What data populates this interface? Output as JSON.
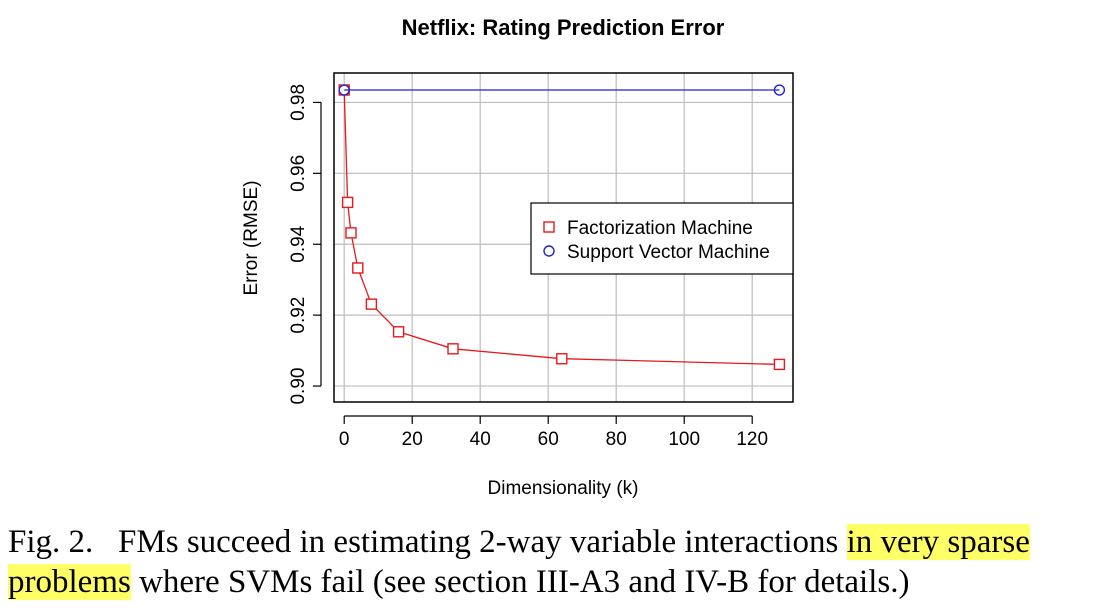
{
  "chart_data": {
    "type": "line",
    "title": "Netflix: Rating Prediction Error",
    "xlabel": "Dimensionality (k)",
    "ylabel": "Error (RMSE)",
    "xlim": [
      -3,
      132
    ],
    "ylim": [
      0.8955,
      0.9883
    ],
    "x_ticks": [
      0,
      20,
      40,
      60,
      80,
      100,
      120
    ],
    "y_ticks": [
      0.9,
      0.92,
      0.94,
      0.96,
      0.98
    ],
    "grid": true,
    "legend_position": "right-middle",
    "series": [
      {
        "name": "Factorization Machine",
        "marker": "square",
        "color": "#e41a1c",
        "x": [
          0,
          1,
          2,
          4,
          8,
          16,
          32,
          64,
          128
        ],
        "y": [
          0.9835,
          0.9518,
          0.9432,
          0.9333,
          0.9231,
          0.9153,
          0.9105,
          0.9077,
          0.9061
        ]
      },
      {
        "name": "Support Vector Machine",
        "marker": "circle",
        "color": "#2222cc",
        "x": [
          0,
          128
        ],
        "y": [
          0.9835,
          0.9835
        ]
      }
    ]
  },
  "caption": {
    "label": "Fig. 2.",
    "text_before": "FMs succeed in estimating 2-way variable interactions ",
    "highlight_1": "in very sparse",
    "highlight_2": "problems",
    "text_after": " where SVMs fail (see section III-A3 and IV-B for details.)",
    "highlight_color": "#ffff66"
  }
}
